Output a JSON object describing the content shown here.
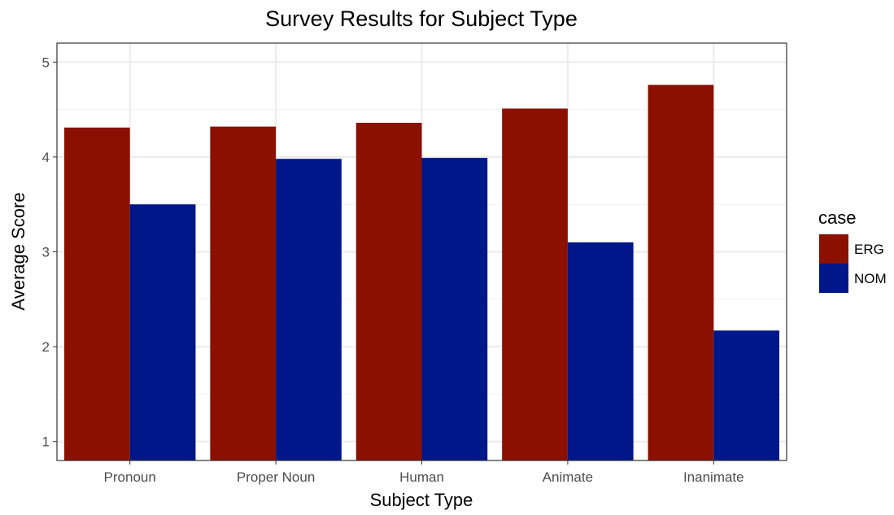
{
  "chart_data": {
    "type": "bar",
    "title": "Survey Results for Subject Type",
    "xlabel": "Subject Type",
    "ylabel": "Average Score",
    "ylim": [
      0.8,
      5.2
    ],
    "yticks": [
      "1",
      "2",
      "3",
      "4",
      "5"
    ],
    "categories": [
      "Pronoun",
      "Proper Noun",
      "Human",
      "Animate",
      "Inanimate"
    ],
    "grid": true,
    "legend_position": "right",
    "legend_title": "case",
    "series": [
      {
        "name": "ERG",
        "color": "#8B1000",
        "values": [
          4.31,
          4.32,
          4.36,
          4.51,
          4.76
        ]
      },
      {
        "name": "NOM",
        "color": "#00178A",
        "values": [
          3.5,
          3.98,
          3.99,
          3.1,
          2.17
        ]
      }
    ]
  }
}
